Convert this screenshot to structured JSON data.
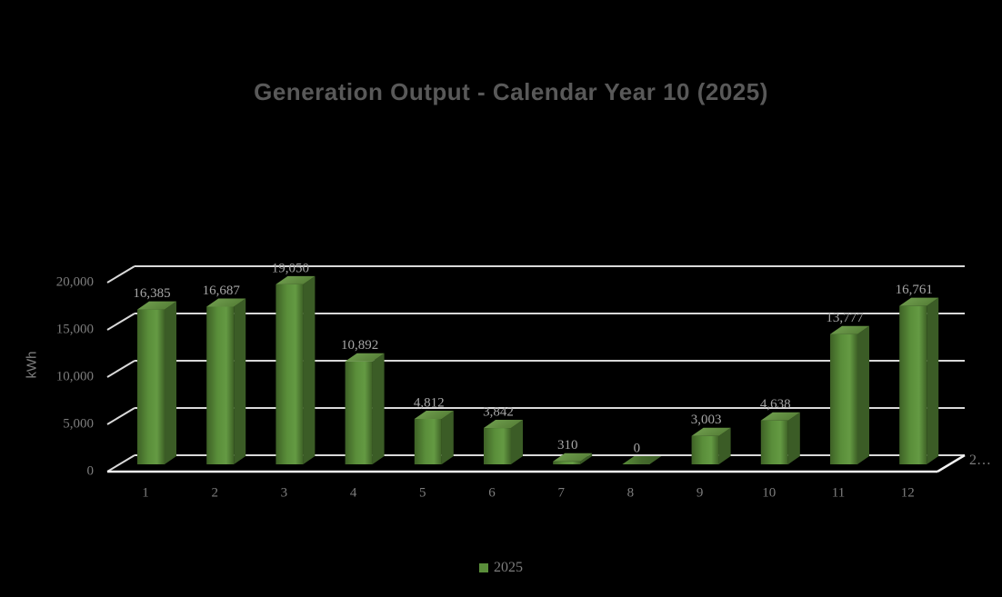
{
  "chart_data": {
    "type": "bar",
    "projection": "3d",
    "title": "Generation Output - Calendar Year 10 (2025)",
    "ylabel": "kWh",
    "xlabel": "",
    "depth_axis_label": "2…",
    "categories": [
      "1",
      "2",
      "3",
      "4",
      "5",
      "6",
      "7",
      "8",
      "9",
      "10",
      "11",
      "12"
    ],
    "series": [
      {
        "name": "2025",
        "values": [
          16385,
          16687,
          19050,
          10892,
          4812,
          3842,
          310,
          0,
          3003,
          4638,
          13777,
          16761
        ]
      }
    ],
    "value_labels_shown": true,
    "yticks": [
      0,
      5000,
      10000,
      15000,
      20000
    ],
    "ylim": [
      0,
      20000
    ],
    "grid": true,
    "legend_position": "bottom",
    "colors": {
      "background": "#000000",
      "title_text": "#595959",
      "axis_text": "#7d7d7d",
      "value_label_text": "#a6a6a6",
      "gridline": "#d9d9d9",
      "axis_line": "#f2f2f2",
      "bar_front": "#5a8e3a",
      "bar_front_dark": "#3e6126",
      "bar_front_light": "#649a43",
      "bar_side": "#3b5c26",
      "bar_top": "#74a352",
      "bar_top_dark": "#567f37",
      "bar_zero": "#44692c",
      "bar_zero_edge": "#5a8e3a",
      "legend_swatch": "#5a8e3a"
    }
  }
}
